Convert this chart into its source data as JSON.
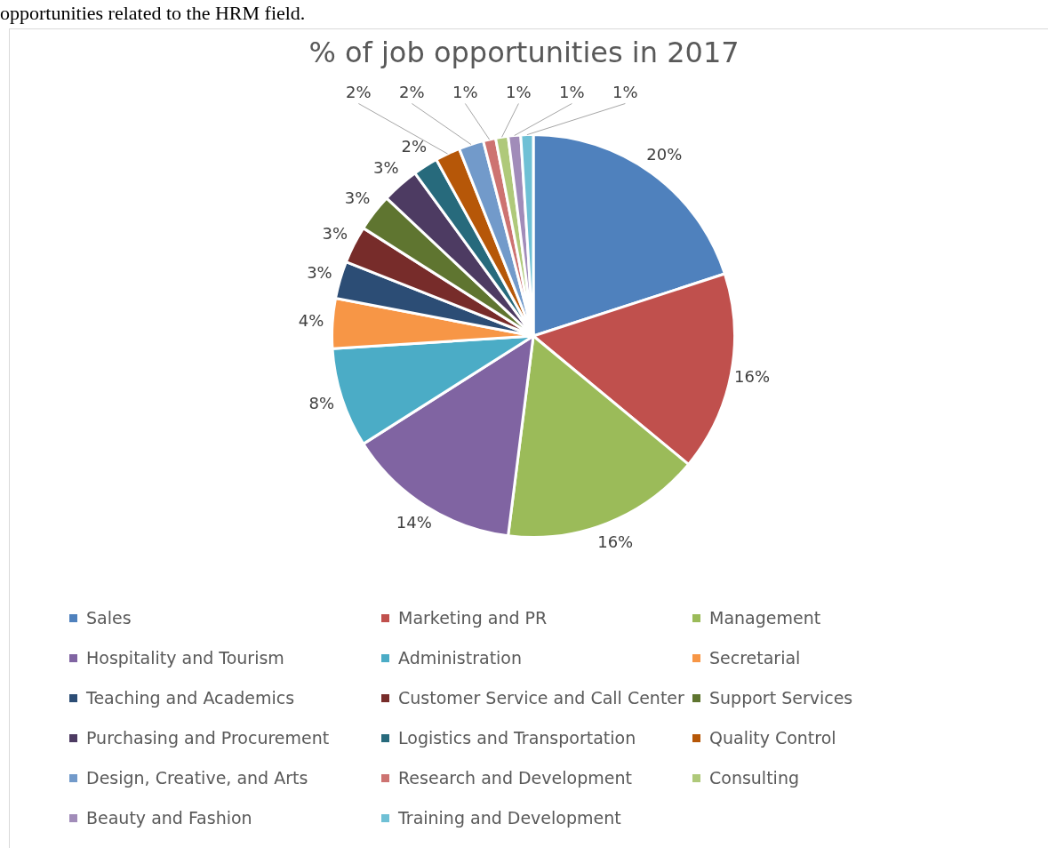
{
  "chart_data": {
    "type": "pie",
    "title": "% of job opportunities in 2017",
    "annotations": [
      "opportunities related to the HRM field."
    ],
    "categories": [
      "Sales",
      "Marketing and PR",
      "Management",
      "Hospitality and Tourism",
      "Administration",
      "Secretarial",
      "Teaching and Academics",
      "Customer Service and Call Center",
      "Support Services",
      "Purchasing and Procurement",
      "Logistics and Transportation",
      "Quality Control",
      "Design, Creative, and Arts",
      "Research and Development",
      "Consulting",
      "Beauty and Fashion",
      "Training and Development"
    ],
    "values": [
      20,
      16,
      16,
      14,
      8,
      4,
      3,
      3,
      3,
      3,
      2,
      2,
      2,
      1,
      1,
      1,
      1
    ],
    "colors": [
      "#4f81bd",
      "#c0504d",
      "#9bbb59",
      "#8064a2",
      "#4bacc6",
      "#f79646",
      "#2c4d75",
      "#772c2a",
      "#5f7530",
      "#4d3b62",
      "#276a7c",
      "#b65708",
      "#729aca",
      "#cd7371",
      "#afc97a",
      "#a18cb9",
      "#6fc0d5"
    ],
    "value_labels": [
      "20%",
      "16%",
      "16%",
      "14%",
      "8%",
      "4%",
      "3%",
      "3%",
      "3%",
      "3%",
      "2%",
      "2%",
      "2%",
      "1%",
      "1%",
      "1%",
      "1%"
    ],
    "legend": "bottom"
  }
}
